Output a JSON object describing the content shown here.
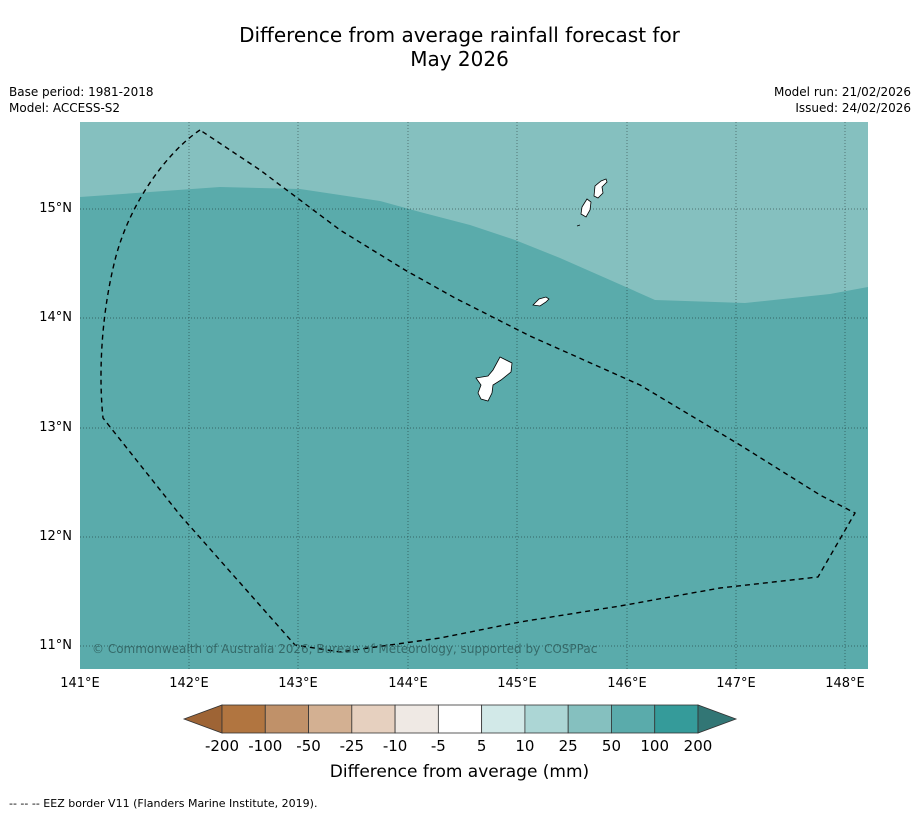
{
  "title": {
    "line1": "Difference from average rainfall forecast for",
    "line2": "May 2026"
  },
  "info_left": {
    "base_period": "Base period: 1981-2018",
    "model": "Model: ACCESS-S2"
  },
  "info_right": {
    "model_run": "Model run: 21/02/2026",
    "issued": "Issued: 24/02/2026"
  },
  "map": {
    "lon_ticks": [
      "141°E",
      "142°E",
      "143°E",
      "144°E",
      "145°E",
      "146°E",
      "147°E",
      "148°E"
    ],
    "lat_ticks": [
      "15°N",
      "14°N",
      "13°N",
      "12°N",
      "11°N"
    ],
    "copyright": "© Commonwealth of Australia 2026, Bureau of Meteorology, supported by COSPPac",
    "colors": {
      "zone_25_50": "#85c0bf",
      "zone_50_100": "#5aabab",
      "land_fill": "#ffffff"
    }
  },
  "colorbar": {
    "labels": [
      "-200",
      "-100",
      "-50",
      "-25",
      "-10",
      "-5",
      "5",
      "10",
      "25",
      "50",
      "100",
      "200"
    ],
    "colors": [
      "#9e6435",
      "#b17540",
      "#c09169",
      "#d3b092",
      "#e6d0bf",
      "#efe9e4",
      "#ffffff",
      "#d2e9e8",
      "#acd6d5",
      "#85c0bf",
      "#5aabab",
      "#359b9a",
      "#327675"
    ],
    "title": "Difference from average (mm)"
  },
  "footnote": "--  --  -- EEZ border V11 (Flanders Marine Institute, 2019)."
}
